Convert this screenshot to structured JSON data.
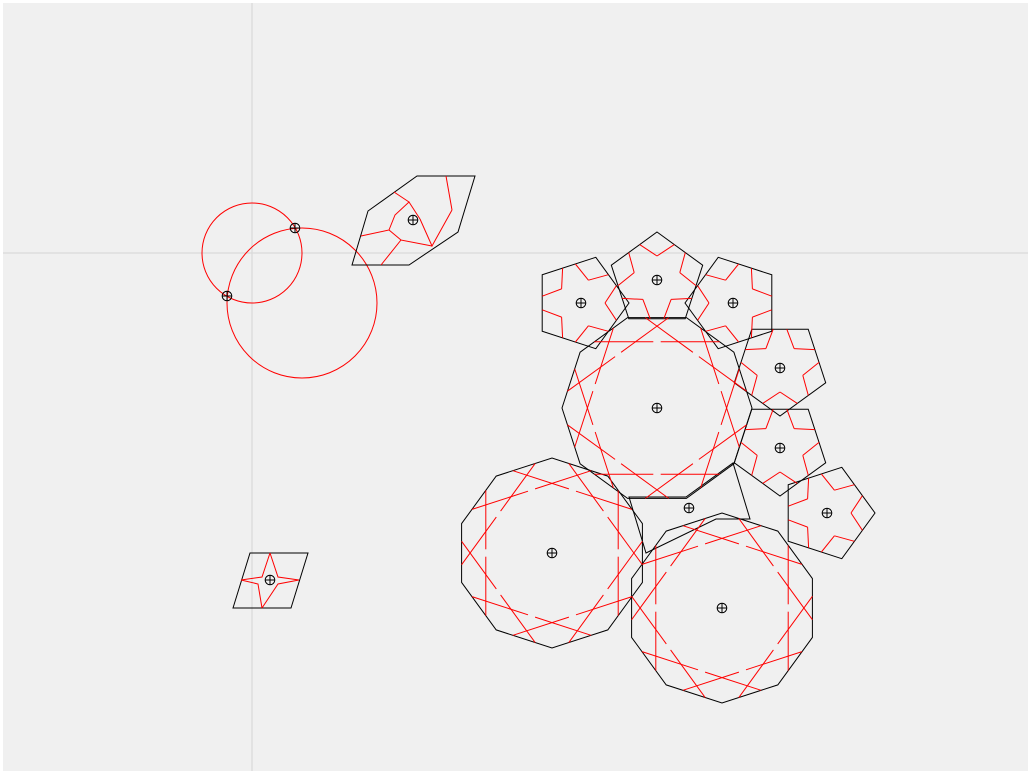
{
  "canvas": {
    "background": "#f0f0f0",
    "border": "#ffffff",
    "axis_color": "#d9d9d9",
    "tile_stroke": "#000000",
    "motif_stroke": "#ff0000"
  },
  "axes": {
    "visible": true
  },
  "construction_circles": [
    {
      "name": "small-circle"
    },
    {
      "name": "large-circle"
    }
  ],
  "tiles": [
    {
      "name": "rhombus-tile-top",
      "kind": "rhombus"
    },
    {
      "name": "rhombus-tile-bottom",
      "kind": "rhombus"
    },
    {
      "name": "pentagon-tile",
      "kind": "pentagon"
    },
    {
      "name": "decagon-tile",
      "kind": "decagon"
    },
    {
      "name": "bowtie-tile",
      "kind": "bowtie"
    }
  ]
}
